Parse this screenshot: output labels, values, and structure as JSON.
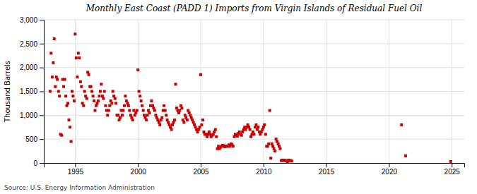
{
  "chart_data": {
    "type": "scatter",
    "title": "Monthly East Coast (PADD 1) Imports from Virgin Islands of Residual Fuel Oil",
    "ylabel": "Thousand Barrels",
    "annotations": [
      "Source: U.S. Energy Information Administration"
    ],
    "color": "#cc0000",
    "marker": "square",
    "grid": true,
    "xlim": [
      1992.5,
      2026
    ],
    "ylim": [
      0,
      3000
    ],
    "xticks": [
      1995,
      2000,
      2005,
      2010,
      2015,
      2020,
      2025
    ],
    "yticks": [
      0,
      500,
      {
        "value": 1000,
        "label": "1,000"
      },
      {
        "value": 1500,
        "label": "1,500"
      },
      {
        "value": 2000,
        "label": "2,000"
      },
      {
        "value": 2500,
        "label": "2,500"
      },
      {
        "value": 3000,
        "label": "3,000"
      }
    ],
    "x": [
      1993.0,
      1993.08,
      1993.17,
      1993.25,
      1993.33,
      1993.42,
      1993.5,
      1993.58,
      1993.67,
      1993.75,
      1993.83,
      1993.92,
      1994.0,
      1994.08,
      1994.17,
      1994.25,
      1994.33,
      1994.42,
      1994.5,
      1994.58,
      1994.67,
      1994.75,
      1994.83,
      1994.92,
      1995.0,
      1995.08,
      1995.17,
      1995.25,
      1995.33,
      1995.42,
      1995.5,
      1995.58,
      1995.67,
      1995.75,
      1995.83,
      1995.92,
      1996.0,
      1996.08,
      1996.17,
      1996.25,
      1996.33,
      1996.42,
      1996.5,
      1996.58,
      1996.67,
      1996.75,
      1996.83,
      1996.92,
      1997.0,
      1997.08,
      1997.17,
      1997.25,
      1997.33,
      1997.42,
      1997.5,
      1997.58,
      1997.67,
      1997.75,
      1997.83,
      1997.92,
      1998.0,
      1998.08,
      1998.17,
      1998.25,
      1998.33,
      1998.42,
      1998.5,
      1998.58,
      1998.67,
      1998.75,
      1998.83,
      1998.92,
      1999.0,
      1999.08,
      1999.17,
      1999.25,
      1999.33,
      1999.42,
      1999.5,
      1999.58,
      1999.67,
      1999.75,
      1999.83,
      1999.92,
      2000.0,
      2000.08,
      2000.17,
      2000.25,
      2000.33,
      2000.42,
      2000.5,
      2000.58,
      2000.67,
      2000.75,
      2000.83,
      2000.92,
      2001.0,
      2001.08,
      2001.17,
      2001.25,
      2001.33,
      2001.42,
      2001.5,
      2001.58,
      2001.67,
      2001.75,
      2001.83,
      2001.92,
      2002.0,
      2002.08,
      2002.17,
      2002.25,
      2002.33,
      2002.42,
      2002.5,
      2002.58,
      2002.67,
      2002.75,
      2002.83,
      2002.92,
      2003.0,
      2003.08,
      2003.17,
      2003.25,
      2003.33,
      2003.42,
      2003.5,
      2003.58,
      2003.67,
      2003.75,
      2003.83,
      2003.92,
      2004.0,
      2004.08,
      2004.17,
      2004.25,
      2004.33,
      2004.42,
      2004.5,
      2004.58,
      2004.67,
      2004.75,
      2004.83,
      2004.92,
      2005.0,
      2005.08,
      2005.17,
      2005.25,
      2005.33,
      2005.42,
      2005.5,
      2005.58,
      2005.67,
      2005.75,
      2005.83,
      2005.92,
      2006.0,
      2006.08,
      2006.17,
      2006.25,
      2006.33,
      2006.42,
      2006.5,
      2006.58,
      2006.67,
      2006.75,
      2006.83,
      2006.92,
      2007.0,
      2007.08,
      2007.17,
      2007.25,
      2007.33,
      2007.42,
      2007.5,
      2007.58,
      2007.67,
      2007.75,
      2007.83,
      2007.92,
      2008.0,
      2008.08,
      2008.17,
      2008.25,
      2008.33,
      2008.42,
      2008.5,
      2008.58,
      2008.67,
      2008.75,
      2008.83,
      2008.92,
      2009.0,
      2009.08,
      2009.17,
      2009.25,
      2009.33,
      2009.42,
      2009.5,
      2009.58,
      2009.67,
      2009.75,
      2009.83,
      2009.92,
      2010.0,
      2010.08,
      2010.17,
      2010.25,
      2010.33,
      2010.42,
      2010.5,
      2010.58,
      2010.67,
      2010.75,
      2010.83,
      2010.92,
      2011.0,
      2011.08,
      2011.17,
      2011.25,
      2011.33,
      2011.42,
      2011.5,
      2011.58,
      2011.67,
      2011.75,
      2011.83,
      2011.92,
      2012.0,
      2012.08,
      2012.17,
      2012.25,
      2021.0,
      2021.33,
      2024.92
    ],
    "values": [
      1500,
      2300,
      1800,
      2100,
      2600,
      1600,
      1800,
      1750,
      1500,
      1400,
      600,
      580,
      1750,
      1600,
      1750,
      1400,
      1200,
      1250,
      900,
      750,
      450,
      1500,
      1400,
      1300,
      2700,
      2200,
      1800,
      2300,
      2200,
      1700,
      1600,
      1250,
      1200,
      1500,
      1400,
      1350,
      1900,
      1850,
      1600,
      1600,
      1500,
      1400,
      1300,
      1100,
      1200,
      1250,
      1300,
      1400,
      1500,
      1650,
      1400,
      1350,
      1500,
      1200,
      1100,
      1000,
      1100,
      1200,
      1300,
      1250,
      1500,
      1400,
      1350,
      1250,
      1000,
      1000,
      900,
      950,
      1100,
      1000,
      1100,
      1200,
      1400,
      1300,
      1250,
      1200,
      1100,
      1000,
      950,
      900,
      1100,
      1000,
      1050,
      1100,
      1950,
      1500,
      1400,
      1300,
      1200,
      1100,
      1000,
      950,
      900,
      1000,
      1100,
      1050,
      1200,
      1300,
      1200,
      1150,
      1100,
      1000,
      950,
      900,
      850,
      800,
      900,
      950,
      1100,
      1200,
      1100,
      1000,
      900,
      850,
      800,
      750,
      700,
      800,
      850,
      900,
      1650,
      1150,
      1100,
      1050,
      1100,
      1200,
      1150,
      900,
      850,
      1000,
      950,
      900,
      1100,
      1050,
      1000,
      950,
      900,
      850,
      800,
      750,
      700,
      650,
      700,
      750,
      1850,
      800,
      900,
      650,
      600,
      600,
      550,
      600,
      650,
      600,
      550,
      580,
      600,
      650,
      700,
      550,
      300,
      350,
      300,
      330,
      350,
      370,
      360,
      340,
      350,
      350,
      350,
      380,
      350,
      400,
      380,
      350,
      550,
      600,
      580,
      560,
      620,
      650,
      600,
      580,
      650,
      700,
      750,
      700,
      750,
      800,
      750,
      700,
      550,
      600,
      650,
      600,
      750,
      800,
      700,
      750,
      650,
      600,
      650,
      700,
      750,
      800,
      600,
      350,
      350,
      400,
      1100,
      100,
      400,
      350,
      300,
      250,
      500,
      450,
      400,
      350,
      300,
      50,
      60,
      50,
      60,
      50,
      40,
      30,
      60,
      50,
      50,
      40,
      800,
      150,
      30
    ]
  }
}
